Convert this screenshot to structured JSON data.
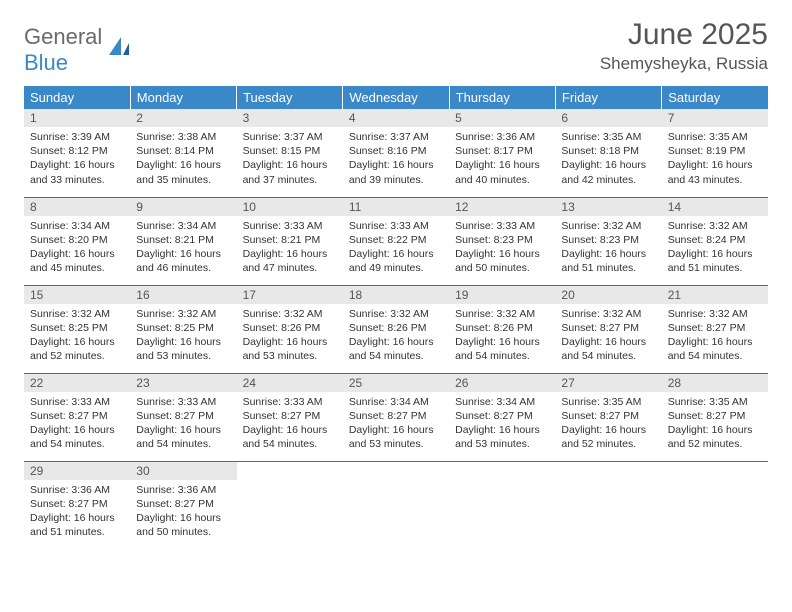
{
  "logo": {
    "text1": "General",
    "text2": "Blue"
  },
  "title": "June 2025",
  "location": "Shemysheyka, Russia",
  "weekdays": [
    "Sunday",
    "Monday",
    "Tuesday",
    "Wednesday",
    "Thursday",
    "Friday",
    "Saturday"
  ],
  "colors": {
    "header_bg": "#3a88c8",
    "header_text": "#ffffff",
    "daynum_bg": "#e8e8e8",
    "row_border": "#3a6fa0",
    "text": "#333333",
    "title_text": "#555555"
  },
  "days": [
    {
      "n": "1",
      "sunrise": "Sunrise: 3:39 AM",
      "sunset": "Sunset: 8:12 PM",
      "daylight": "Daylight: 16 hours and 33 minutes."
    },
    {
      "n": "2",
      "sunrise": "Sunrise: 3:38 AM",
      "sunset": "Sunset: 8:14 PM",
      "daylight": "Daylight: 16 hours and 35 minutes."
    },
    {
      "n": "3",
      "sunrise": "Sunrise: 3:37 AM",
      "sunset": "Sunset: 8:15 PM",
      "daylight": "Daylight: 16 hours and 37 minutes."
    },
    {
      "n": "4",
      "sunrise": "Sunrise: 3:37 AM",
      "sunset": "Sunset: 8:16 PM",
      "daylight": "Daylight: 16 hours and 39 minutes."
    },
    {
      "n": "5",
      "sunrise": "Sunrise: 3:36 AM",
      "sunset": "Sunset: 8:17 PM",
      "daylight": "Daylight: 16 hours and 40 minutes."
    },
    {
      "n": "6",
      "sunrise": "Sunrise: 3:35 AM",
      "sunset": "Sunset: 8:18 PM",
      "daylight": "Daylight: 16 hours and 42 minutes."
    },
    {
      "n": "7",
      "sunrise": "Sunrise: 3:35 AM",
      "sunset": "Sunset: 8:19 PM",
      "daylight": "Daylight: 16 hours and 43 minutes."
    },
    {
      "n": "8",
      "sunrise": "Sunrise: 3:34 AM",
      "sunset": "Sunset: 8:20 PM",
      "daylight": "Daylight: 16 hours and 45 minutes."
    },
    {
      "n": "9",
      "sunrise": "Sunrise: 3:34 AM",
      "sunset": "Sunset: 8:21 PM",
      "daylight": "Daylight: 16 hours and 46 minutes."
    },
    {
      "n": "10",
      "sunrise": "Sunrise: 3:33 AM",
      "sunset": "Sunset: 8:21 PM",
      "daylight": "Daylight: 16 hours and 47 minutes."
    },
    {
      "n": "11",
      "sunrise": "Sunrise: 3:33 AM",
      "sunset": "Sunset: 8:22 PM",
      "daylight": "Daylight: 16 hours and 49 minutes."
    },
    {
      "n": "12",
      "sunrise": "Sunrise: 3:33 AM",
      "sunset": "Sunset: 8:23 PM",
      "daylight": "Daylight: 16 hours and 50 minutes."
    },
    {
      "n": "13",
      "sunrise": "Sunrise: 3:32 AM",
      "sunset": "Sunset: 8:23 PM",
      "daylight": "Daylight: 16 hours and 51 minutes."
    },
    {
      "n": "14",
      "sunrise": "Sunrise: 3:32 AM",
      "sunset": "Sunset: 8:24 PM",
      "daylight": "Daylight: 16 hours and 51 minutes."
    },
    {
      "n": "15",
      "sunrise": "Sunrise: 3:32 AM",
      "sunset": "Sunset: 8:25 PM",
      "daylight": "Daylight: 16 hours and 52 minutes."
    },
    {
      "n": "16",
      "sunrise": "Sunrise: 3:32 AM",
      "sunset": "Sunset: 8:25 PM",
      "daylight": "Daylight: 16 hours and 53 minutes."
    },
    {
      "n": "17",
      "sunrise": "Sunrise: 3:32 AM",
      "sunset": "Sunset: 8:26 PM",
      "daylight": "Daylight: 16 hours and 53 minutes."
    },
    {
      "n": "18",
      "sunrise": "Sunrise: 3:32 AM",
      "sunset": "Sunset: 8:26 PM",
      "daylight": "Daylight: 16 hours and 54 minutes."
    },
    {
      "n": "19",
      "sunrise": "Sunrise: 3:32 AM",
      "sunset": "Sunset: 8:26 PM",
      "daylight": "Daylight: 16 hours and 54 minutes."
    },
    {
      "n": "20",
      "sunrise": "Sunrise: 3:32 AM",
      "sunset": "Sunset: 8:27 PM",
      "daylight": "Daylight: 16 hours and 54 minutes."
    },
    {
      "n": "21",
      "sunrise": "Sunrise: 3:32 AM",
      "sunset": "Sunset: 8:27 PM",
      "daylight": "Daylight: 16 hours and 54 minutes."
    },
    {
      "n": "22",
      "sunrise": "Sunrise: 3:33 AM",
      "sunset": "Sunset: 8:27 PM",
      "daylight": "Daylight: 16 hours and 54 minutes."
    },
    {
      "n": "23",
      "sunrise": "Sunrise: 3:33 AM",
      "sunset": "Sunset: 8:27 PM",
      "daylight": "Daylight: 16 hours and 54 minutes."
    },
    {
      "n": "24",
      "sunrise": "Sunrise: 3:33 AM",
      "sunset": "Sunset: 8:27 PM",
      "daylight": "Daylight: 16 hours and 54 minutes."
    },
    {
      "n": "25",
      "sunrise": "Sunrise: 3:34 AM",
      "sunset": "Sunset: 8:27 PM",
      "daylight": "Daylight: 16 hours and 53 minutes."
    },
    {
      "n": "26",
      "sunrise": "Sunrise: 3:34 AM",
      "sunset": "Sunset: 8:27 PM",
      "daylight": "Daylight: 16 hours and 53 minutes."
    },
    {
      "n": "27",
      "sunrise": "Sunrise: 3:35 AM",
      "sunset": "Sunset: 8:27 PM",
      "daylight": "Daylight: 16 hours and 52 minutes."
    },
    {
      "n": "28",
      "sunrise": "Sunrise: 3:35 AM",
      "sunset": "Sunset: 8:27 PM",
      "daylight": "Daylight: 16 hours and 52 minutes."
    },
    {
      "n": "29",
      "sunrise": "Sunrise: 3:36 AM",
      "sunset": "Sunset: 8:27 PM",
      "daylight": "Daylight: 16 hours and 51 minutes."
    },
    {
      "n": "30",
      "sunrise": "Sunrise: 3:36 AM",
      "sunset": "Sunset: 8:27 PM",
      "daylight": "Daylight: 16 hours and 50 minutes."
    }
  ]
}
